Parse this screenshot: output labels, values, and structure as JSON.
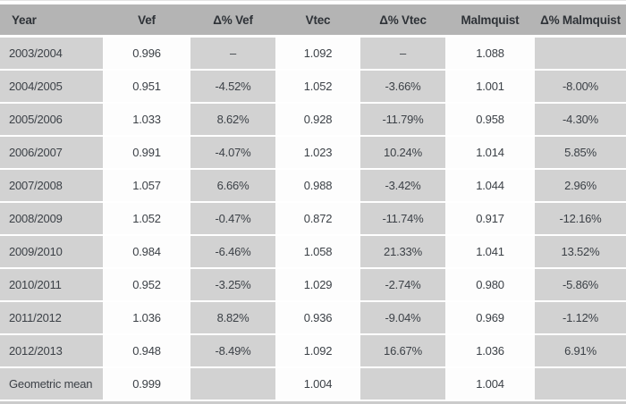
{
  "colors": {
    "header_bg": "#b4b4b4",
    "gray_column_bg": "#d2d2d2",
    "white_column_bg": "#fdfdfd",
    "row_separator": "#ffffff",
    "bottom_border": "#cbcbcb",
    "text": "#3c4147"
  },
  "chart_data": {
    "type": "table",
    "columns": [
      "Year",
      "Vef",
      "Δ% Vef",
      "Vtec",
      "Δ% Vtec",
      "Malmquist",
      "Δ% Malmquist"
    ],
    "rows": [
      [
        "2003/2004",
        "0.996",
        "–",
        "1.092",
        "–",
        "1.088",
        ""
      ],
      [
        "2004/2005",
        "0.951",
        "-4.52%",
        "1.052",
        "-3.66%",
        "1.001",
        "-8.00%"
      ],
      [
        "2005/2006",
        "1.033",
        "8.62%",
        "0.928",
        "-11.79%",
        "0.958",
        "-4.30%"
      ],
      [
        "2006/2007",
        "0.991",
        "-4.07%",
        "1.023",
        "10.24%",
        "1.014",
        "5.85%"
      ],
      [
        "2007/2008",
        "1.057",
        "6.66%",
        "0.988",
        "-3.42%",
        "1.044",
        "2.96%"
      ],
      [
        "2008/2009",
        "1.052",
        "-0.47%",
        "0.872",
        "-11.74%",
        "0.917",
        "-12.16%"
      ],
      [
        "2009/2010",
        "0.984",
        "-6.46%",
        "1.058",
        "21.33%",
        "1.041",
        "13.52%"
      ],
      [
        "2010/2011",
        "0.952",
        "-3.25%",
        "1.029",
        "-2.74%",
        "0.980",
        "-5.86%"
      ],
      [
        "2011/2012",
        "1.036",
        "8.82%",
        "0.936",
        "-9.04%",
        "0.969",
        "-1.12%"
      ],
      [
        "2012/2013",
        "0.948",
        "-8.49%",
        "1.092",
        "16.67%",
        "1.036",
        "6.91%"
      ],
      [
        "Geometric mean",
        "0.999",
        "",
        "1.004",
        "",
        "1.004",
        ""
      ]
    ]
  }
}
